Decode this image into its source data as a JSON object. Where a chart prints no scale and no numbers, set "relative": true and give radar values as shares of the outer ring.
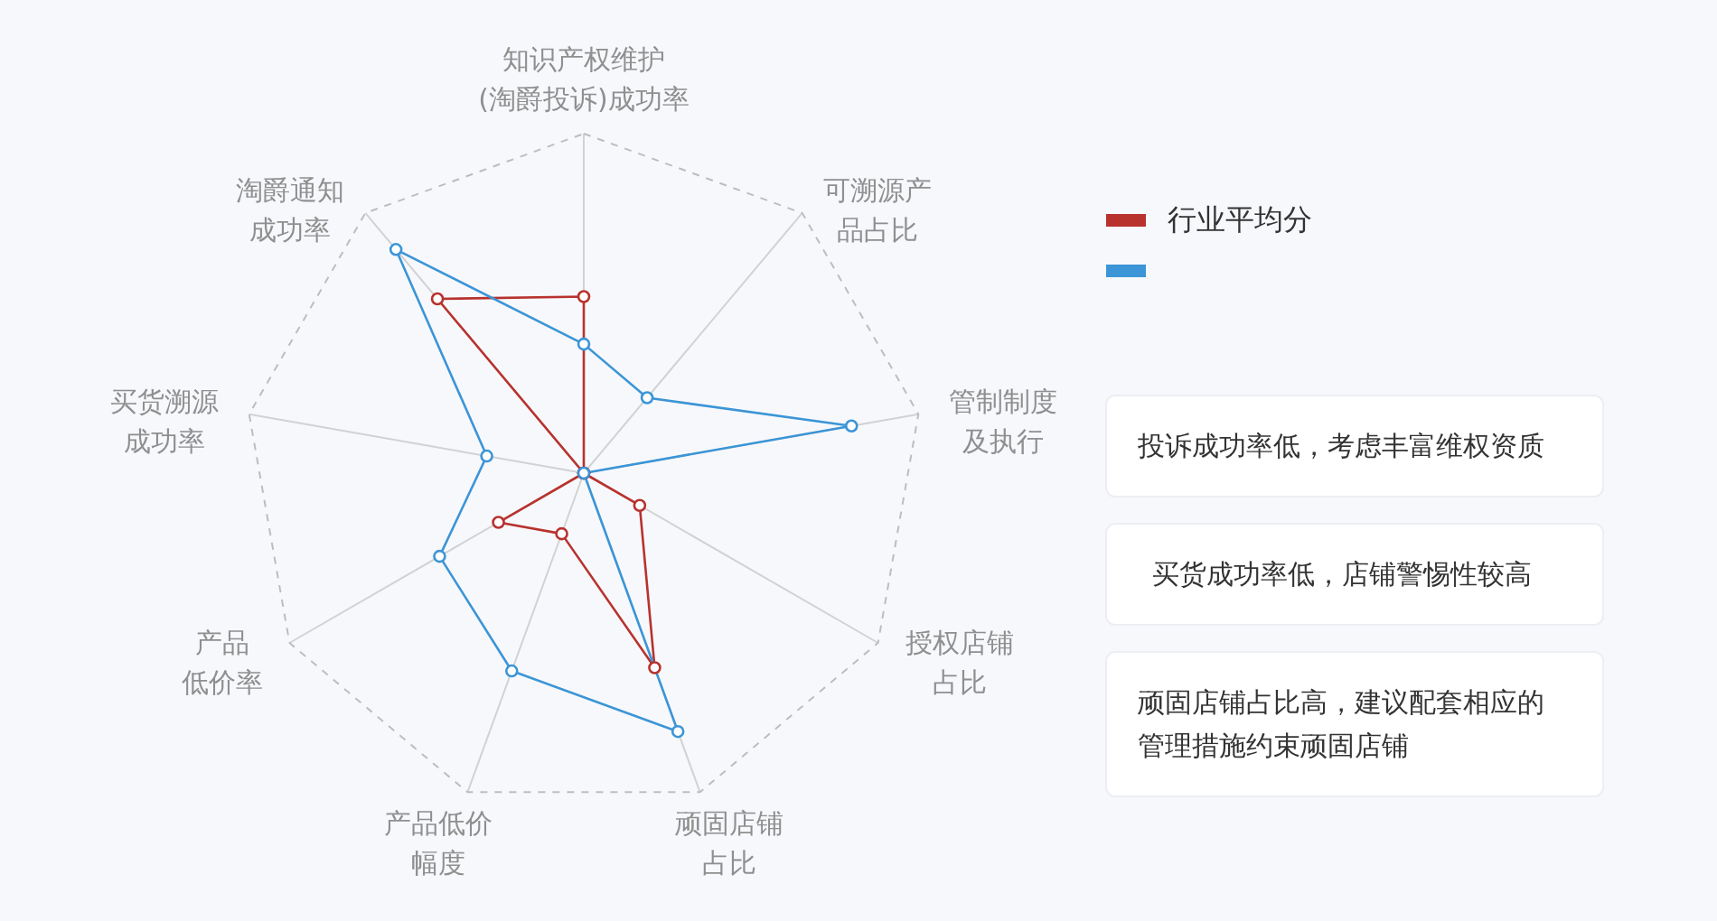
{
  "chart_data": {
    "type": "radar",
    "relative": true,
    "categories": [
      "知识产权维护(淘爵投诉)成功率",
      "可溯源产品占比",
      "管制制度及执行",
      "授权店铺占比",
      "顽固店铺占比",
      "产品低价幅度",
      "产品低价率",
      "买货溯源成功率",
      "淘爵通知成功率"
    ],
    "series": [
      {
        "name": "行业平均分",
        "color": "#b8322e",
        "values": [
          0.52,
          0,
          0,
          0.19,
          0.61,
          0.19,
          0.29,
          0,
          0.67
        ]
      },
      {
        "color": "#3b95d6",
        "values": [
          0.38,
          0.29,
          0.8,
          0,
          0.81,
          0.62,
          0.49,
          0.29,
          0.86
        ]
      }
    ],
    "grid": true,
    "legend": "right",
    "marker": "circle",
    "line_style": "solid",
    "annotations": [
      "投诉成功率低，考虑丰富维权资质",
      "买货成功率低，店铺警惕性较高",
      "顽固店铺占比高，建议配套相应的管理措施约束顽固店铺"
    ]
  }
}
